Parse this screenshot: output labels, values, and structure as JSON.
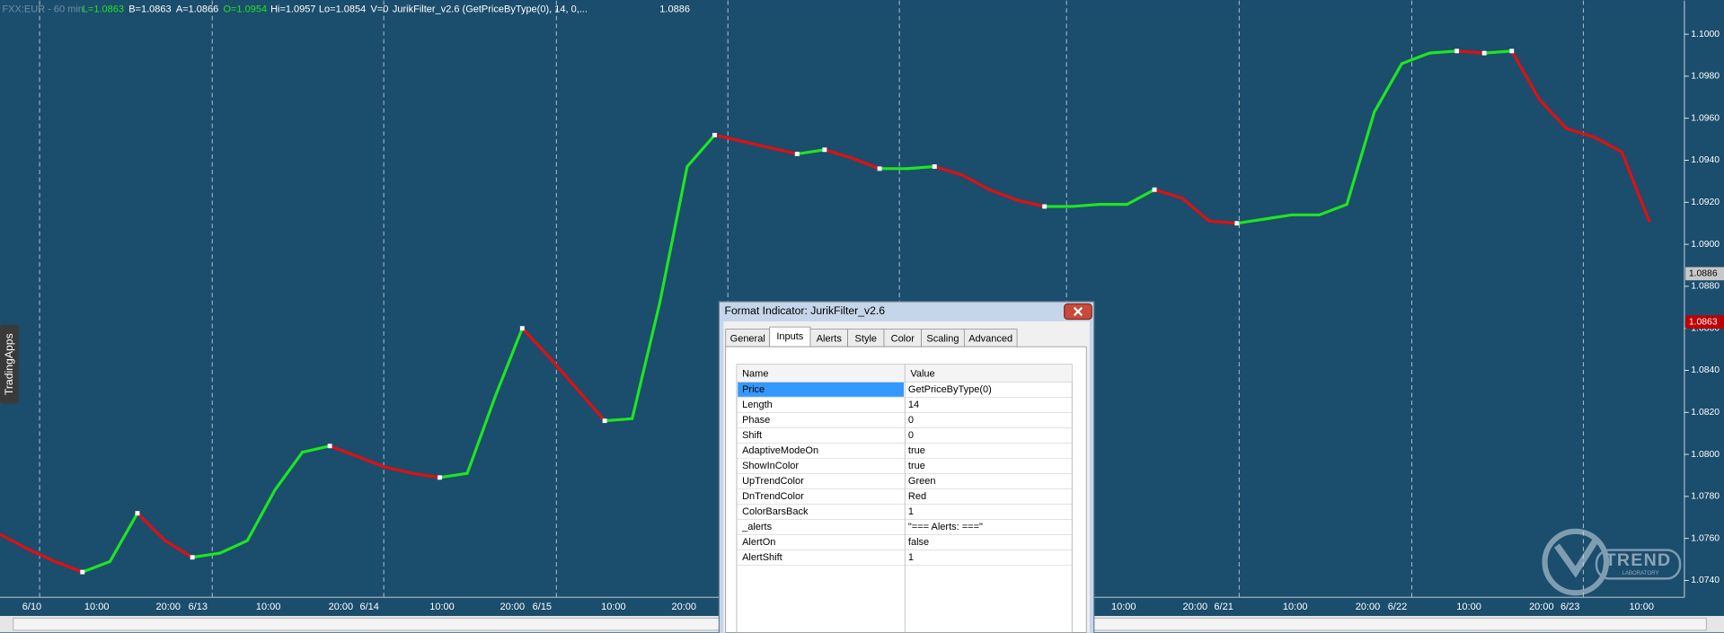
{
  "header": {
    "symbol": "FXX:EUR - 60 min",
    "fields": [
      "L=1.0863",
      "B=1.0863",
      "A=1.0866",
      "O=1.0954",
      "Hi=1.0957",
      "Lo=1.0854",
      "V=0"
    ],
    "study": "JurikFilter_v2.6 (GetPriceByType(0),  14, 0,...",
    "price": "1.0886"
  },
  "side_tab": "TradingApps",
  "logo": {
    "name": "TREND",
    "sub": "LABORATORY"
  },
  "chart_data": {
    "type": "line",
    "x_labels": [
      "6/10",
      "10:00",
      "20:00",
      "6/13",
      "10:00",
      "20:00",
      "6/14",
      "10:00",
      "20:00",
      "6/15",
      "10:00",
      "20:00",
      "10:00",
      "20:00",
      "6/21",
      "10:00",
      "20:00",
      "6/22",
      "10:00",
      "20:00",
      "6/23",
      "10:00"
    ],
    "series": [
      {
        "name": "JurikFilter_v2.6",
        "up_color": "#1ee61e",
        "down_color": "#e01010",
        "values": [
          1.0762,
          1.0755,
          1.0749,
          1.0744,
          1.0749,
          1.0772,
          1.0759,
          1.0751,
          1.0753,
          1.0759,
          1.0783,
          1.0801,
          1.0804,
          1.0799,
          1.0794,
          1.0791,
          1.0789,
          1.0791,
          1.0827,
          1.086,
          1.0846,
          1.0831,
          1.0816,
          1.0817,
          1.0872,
          1.0937,
          1.0952,
          1.0949,
          1.0946,
          1.0943,
          1.0945,
          1.0941,
          1.0936,
          1.0936,
          1.0937,
          1.0933,
          1.0926,
          1.0921,
          1.0918,
          1.0918,
          1.0919,
          1.0919,
          1.0926,
          1.0922,
          1.0911,
          1.091,
          1.0912,
          1.0914,
          1.0914,
          1.0919,
          1.0963,
          1.0986,
          1.0991,
          1.0992,
          1.0991,
          1.0992,
          1.0969,
          1.0955,
          1.0951,
          1.0944,
          1.0911
        ]
      }
    ],
    "ylim": [
      1.0732,
      1.1016
    ],
    "yticks": [
      {
        "value": 1.074,
        "label": "1.0740"
      },
      {
        "value": 1.076,
        "label": "1.0760"
      },
      {
        "value": 1.078,
        "label": "1.0780"
      },
      {
        "value": 1.08,
        "label": "1.0800"
      },
      {
        "value": 1.082,
        "label": "1.0820"
      },
      {
        "value": 1.084,
        "label": "1.0840"
      },
      {
        "value": 1.086,
        "label": "1.0860"
      },
      {
        "value": 1.088,
        "label": "1.0880"
      },
      {
        "value": 1.09,
        "label": "1.0900"
      },
      {
        "value": 1.092,
        "label": "1.0920"
      },
      {
        "value": 1.094,
        "label": "1.0940"
      },
      {
        "value": 1.096,
        "label": "1.0960"
      },
      {
        "value": 1.098,
        "label": "1.0980"
      },
      {
        "value": 1.1,
        "label": "1.1000"
      }
    ],
    "price_markers": [
      {
        "value": 1.0886,
        "label": "1.0886",
        "color": "#c8c8c8"
      },
      {
        "value": 1.0863,
        "label": "1.0863",
        "color": "#c00000"
      }
    ]
  },
  "dialog": {
    "title": "Format Indicator: JurikFilter_v2.6",
    "tabs": [
      "General",
      "Inputs",
      "Alerts",
      "Style",
      "Color",
      "Scaling",
      "Advanced"
    ],
    "table": {
      "columns": [
        "Name",
        "Value"
      ],
      "rows": [
        [
          "Price",
          "GetPriceByType(0)"
        ],
        [
          "Length",
          "14"
        ],
        [
          "Phase",
          "0"
        ],
        [
          "Shift",
          "0"
        ],
        [
          "AdaptiveModeOn",
          "true"
        ],
        [
          "ShowInColor",
          "true"
        ],
        [
          "UpTrendColor",
          "Green"
        ],
        [
          "DnTrendColor",
          "Red"
        ],
        [
          "ColorBarsBack",
          "1"
        ],
        [
          "_alerts",
          "\"=== Alerts: ===\""
        ],
        [
          "AlertOn",
          "false"
        ],
        [
          "AlertShift",
          "1"
        ]
      ]
    }
  }
}
